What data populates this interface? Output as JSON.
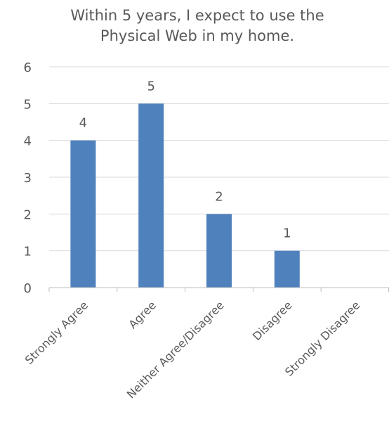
{
  "chart_data": {
    "type": "bar",
    "title_lines": [
      "Within 5 years, I expect to use the",
      "Physical Web in my home."
    ],
    "categories": [
      "Strongly Agree",
      "Agree",
      "Neither Agree/Disagree",
      "Disagree",
      "Strongly Disagree"
    ],
    "values": [
      4,
      5,
      2,
      1,
      0
    ],
    "data_labels": [
      "4",
      "5",
      "2",
      "1",
      ""
    ],
    "xlabel": "",
    "ylabel": "",
    "ylim": [
      0,
      6
    ],
    "yticks": [
      "0",
      "1",
      "2",
      "3",
      "4",
      "5",
      "6"
    ],
    "grid": true,
    "legend": "none",
    "colors": {
      "bar": "#4F81BD",
      "grid": "#D9D9D9",
      "axis": "#BFBFBF",
      "text": "#595959"
    }
  }
}
